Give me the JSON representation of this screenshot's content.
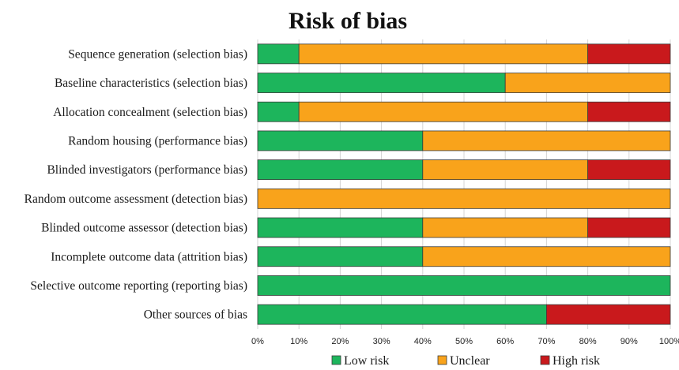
{
  "chart_data": {
    "type": "bar",
    "orientation": "horizontal",
    "stacked": true,
    "title": "Risk of bias",
    "categories": [
      "Sequence generation (selection bias)",
      "Baseline characteristics (selection bias)",
      "Allocation concealment (selection bias)",
      "Random housing (performance bias)",
      "Blinded investigators (performance bias)",
      "Random outcome assessment (detection bias)",
      "Blinded outcome assessor (detection bias)",
      "Incomplete outcome data (attrition bias)",
      "Selective outcome reporting (reporting bias)",
      "Other sources of bias"
    ],
    "series": [
      {
        "name": "Low risk",
        "color": "#1db55c",
        "values": [
          10,
          60,
          10,
          40,
          40,
          0,
          40,
          40,
          100,
          70
        ]
      },
      {
        "name": "Unclear",
        "color": "#f9a31b",
        "values": [
          70,
          40,
          70,
          60,
          40,
          100,
          40,
          60,
          0,
          0
        ]
      },
      {
        "name": "High risk",
        "color": "#c9191c",
        "values": [
          20,
          0,
          20,
          0,
          20,
          0,
          20,
          0,
          0,
          30
        ]
      }
    ],
    "xlim": [
      0,
      100
    ],
    "xticks": [
      0,
      10,
      20,
      30,
      40,
      50,
      60,
      70,
      80,
      90,
      100
    ],
    "xtick_labels": [
      "0%",
      "10%",
      "20%",
      "30%",
      "40%",
      "50%",
      "60%",
      "70%",
      "80%",
      "90%",
      "100%"
    ],
    "grid": true,
    "legend_position": "bottom"
  }
}
